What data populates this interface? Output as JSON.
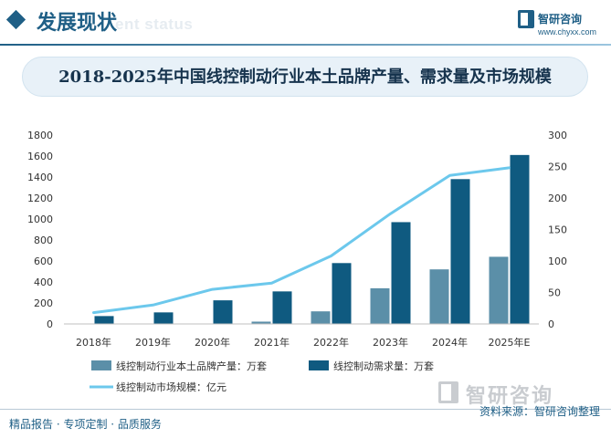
{
  "header": {
    "section_title": "发展现状",
    "section_ghost": "ent status",
    "brand_name": "智研咨询",
    "brand_url": "www.chyxx.com"
  },
  "title": "2018-2025年中国线控制动行业本土品牌产量、需求量及市场规模",
  "chart_data": {
    "type": "bar",
    "title": "2018-2025年中国线控制动行业本土品牌产量、需求量及市场规模",
    "categories": [
      "2018年",
      "2019年",
      "2020年",
      "2021年",
      "2022年",
      "2023年",
      "2024年",
      "2025年E"
    ],
    "ylim_left": [
      0,
      1800
    ],
    "yticks_left": [
      "0",
      "200",
      "400",
      "600",
      "800",
      "1000",
      "1200",
      "1400",
      "1600",
      "1800"
    ],
    "ylim_right": [
      0,
      300
    ],
    "yticks_right": [
      "0",
      "50",
      "100",
      "150",
      "200",
      "250",
      "300"
    ],
    "grid": false,
    "legend_position": "bottom",
    "series": [
      {
        "name": "线控制动行业本土品牌产量：万套",
        "type": "bar",
        "axis": "left",
        "color": "#5b8fa8",
        "values": [
          0,
          0,
          0,
          22,
          120,
          340,
          520,
          640
        ]
      },
      {
        "name": "线控制动需求量：万套",
        "type": "bar",
        "axis": "left",
        "color": "#0f5a80",
        "values": [
          75,
          110,
          225,
          310,
          580,
          970,
          1380,
          1610
        ]
      },
      {
        "name": "线控制动市场规模：亿元",
        "type": "line",
        "axis": "right",
        "color": "#6cc8ec",
        "values": [
          18,
          30,
          55,
          65,
          108,
          175,
          236,
          248
        ]
      }
    ]
  },
  "watermark": "智研咨询",
  "footer": {
    "left": "精品报告 · 专项定制 · 品质服务",
    "right": "资料来源：智研咨询整理"
  }
}
